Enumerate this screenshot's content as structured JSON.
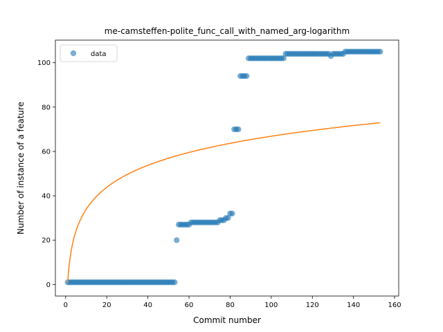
{
  "chart_data": {
    "type": "scatter",
    "title": "me-camsteffen-polite_func_call_with_named_arg-logarithm",
    "xlabel": "Commit number",
    "ylabel": "Number of instance of a feature",
    "xlim": [
      -5,
      162
    ],
    "ylim": [
      -5.2,
      110.2
    ],
    "xticks": [
      0,
      20,
      40,
      60,
      80,
      100,
      120,
      140,
      160
    ],
    "yticks": [
      0,
      20,
      40,
      60,
      80,
      100
    ],
    "grid": false,
    "legend": {
      "placement": "upper-left",
      "entries": [
        "data"
      ]
    },
    "series": [
      {
        "name": "data",
        "kind": "scatter",
        "color": "#1f77b4",
        "points": [
          [
            1,
            1
          ],
          [
            2,
            1
          ],
          [
            3,
            1
          ],
          [
            4,
            1
          ],
          [
            5,
            1
          ],
          [
            6,
            1
          ],
          [
            7,
            1
          ],
          [
            8,
            1
          ],
          [
            9,
            1
          ],
          [
            10,
            1
          ],
          [
            11,
            1
          ],
          [
            12,
            1
          ],
          [
            13,
            1
          ],
          [
            14,
            1
          ],
          [
            15,
            1
          ],
          [
            16,
            1
          ],
          [
            17,
            1
          ],
          [
            18,
            1
          ],
          [
            19,
            1
          ],
          [
            20,
            1
          ],
          [
            21,
            1
          ],
          [
            22,
            1
          ],
          [
            23,
            1
          ],
          [
            24,
            1
          ],
          [
            25,
            1
          ],
          [
            26,
            1
          ],
          [
            27,
            1
          ],
          [
            28,
            1
          ],
          [
            29,
            1
          ],
          [
            30,
            1
          ],
          [
            31,
            1
          ],
          [
            32,
            1
          ],
          [
            33,
            1
          ],
          [
            34,
            1
          ],
          [
            35,
            1
          ],
          [
            36,
            1
          ],
          [
            37,
            1
          ],
          [
            38,
            1
          ],
          [
            39,
            1
          ],
          [
            40,
            1
          ],
          [
            41,
            1
          ],
          [
            42,
            1
          ],
          [
            43,
            1
          ],
          [
            44,
            1
          ],
          [
            45,
            1
          ],
          [
            46,
            1
          ],
          [
            47,
            1
          ],
          [
            48,
            1
          ],
          [
            49,
            1
          ],
          [
            50,
            1
          ],
          [
            51,
            1
          ],
          [
            52,
            1
          ],
          [
            53,
            1
          ],
          [
            54,
            20
          ],
          [
            55,
            27
          ],
          [
            56,
            27
          ],
          [
            57,
            27
          ],
          [
            58,
            27
          ],
          [
            59,
            27
          ],
          [
            60,
            27
          ],
          [
            61,
            28
          ],
          [
            62,
            28
          ],
          [
            63,
            28
          ],
          [
            64,
            28
          ],
          [
            65,
            28
          ],
          [
            66,
            28
          ],
          [
            67,
            28
          ],
          [
            68,
            28
          ],
          [
            69,
            28
          ],
          [
            70,
            28
          ],
          [
            71,
            28
          ],
          [
            72,
            28
          ],
          [
            73,
            28
          ],
          [
            74,
            28
          ],
          [
            75,
            29
          ],
          [
            76,
            29
          ],
          [
            77,
            29
          ],
          [
            78,
            30
          ],
          [
            79,
            30
          ],
          [
            80,
            32
          ],
          [
            81,
            32
          ],
          [
            82,
            70
          ],
          [
            83,
            70
          ],
          [
            84,
            70
          ],
          [
            85,
            94
          ],
          [
            86,
            94
          ],
          [
            87,
            94
          ],
          [
            88,
            94
          ],
          [
            89,
            102
          ],
          [
            90,
            102
          ],
          [
            91,
            102
          ],
          [
            92,
            102
          ],
          [
            93,
            102
          ],
          [
            94,
            102
          ],
          [
            95,
            102
          ],
          [
            96,
            102
          ],
          [
            97,
            102
          ],
          [
            98,
            102
          ],
          [
            99,
            102
          ],
          [
            100,
            102
          ],
          [
            101,
            102
          ],
          [
            102,
            102
          ],
          [
            103,
            102
          ],
          [
            104,
            102
          ],
          [
            105,
            102
          ],
          [
            106,
            102
          ],
          [
            107,
            104
          ],
          [
            108,
            104
          ],
          [
            109,
            104
          ],
          [
            110,
            104
          ],
          [
            111,
            104
          ],
          [
            112,
            104
          ],
          [
            113,
            104
          ],
          [
            114,
            104
          ],
          [
            115,
            104
          ],
          [
            116,
            104
          ],
          [
            117,
            104
          ],
          [
            118,
            104
          ],
          [
            119,
            104
          ],
          [
            120,
            104
          ],
          [
            121,
            104
          ],
          [
            122,
            104
          ],
          [
            123,
            104
          ],
          [
            124,
            104
          ],
          [
            125,
            104
          ],
          [
            126,
            104
          ],
          [
            127,
            104
          ],
          [
            128,
            104
          ],
          [
            129,
            103
          ],
          [
            130,
            104
          ],
          [
            131,
            104
          ],
          [
            132,
            104
          ],
          [
            133,
            104
          ],
          [
            134,
            104
          ],
          [
            135,
            104
          ],
          [
            136,
            105
          ],
          [
            137,
            105
          ],
          [
            138,
            105
          ],
          [
            139,
            105
          ],
          [
            140,
            105
          ],
          [
            141,
            105
          ],
          [
            142,
            105
          ],
          [
            143,
            105
          ],
          [
            144,
            105
          ],
          [
            145,
            105
          ],
          [
            146,
            105
          ],
          [
            147,
            105
          ],
          [
            148,
            105
          ],
          [
            149,
            105
          ],
          [
            150,
            105
          ],
          [
            151,
            105
          ],
          [
            152,
            105
          ],
          [
            153,
            105
          ]
        ]
      },
      {
        "name": "",
        "kind": "line",
        "color": "#ff7f0e",
        "function": "a*ln(x)+b",
        "a": 14.3,
        "b": 1,
        "x_range": [
          1,
          153
        ]
      }
    ]
  }
}
